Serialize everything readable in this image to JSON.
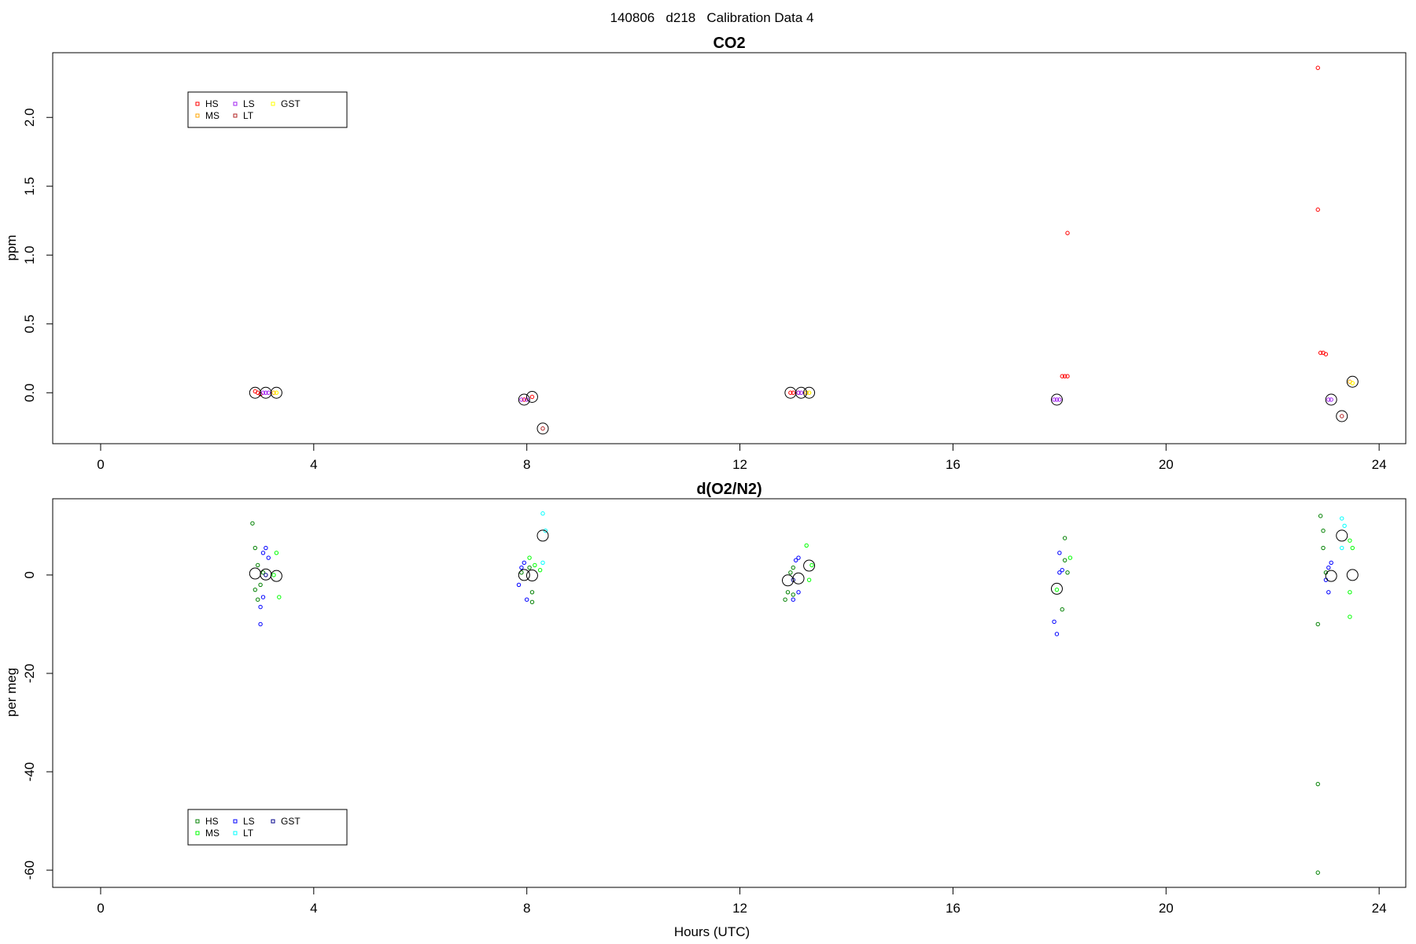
{
  "page_title": "140806   d218   Calibration Data 4",
  "chart_data": [
    {
      "type": "scatter",
      "title": "CO2",
      "xlabel": "",
      "ylabel": "ppm",
      "xlim": [
        -0.9,
        24.5
      ],
      "ylim": [
        -0.37,
        2.47
      ],
      "x_ticks": [
        0,
        4,
        8,
        12,
        16,
        20,
        24
      ],
      "x_tick_labels": [
        "0",
        "4",
        "8",
        "12",
        "16",
        "20",
        "24"
      ],
      "y_ticks": [
        0,
        0.5,
        1,
        1.5,
        2
      ],
      "y_tick_labels": [
        "0.0",
        "0.5",
        "1.0",
        "1.5",
        "2.0"
      ],
      "grid": false,
      "legend": {
        "placement": "top-left",
        "entries": [
          {
            "label": "HS",
            "color": "#ff0000"
          },
          {
            "label": "MS",
            "color": "#ffa500"
          },
          {
            "label": "LS",
            "color": "#a020f0"
          },
          {
            "label": "LT",
            "color": "#b22222"
          },
          {
            "label": "GST",
            "color": "#ffff00"
          }
        ]
      },
      "series": [
        {
          "name": "HS",
          "color": "#ff0000",
          "points": [
            [
              2.9,
              0.01
            ],
            [
              2.95,
              0.0
            ],
            [
              3.0,
              -0.01
            ],
            [
              7.95,
              -0.05
            ],
            [
              8.1,
              -0.03
            ],
            [
              12.95,
              0.0
            ],
            [
              13.0,
              0.0
            ],
            [
              13.1,
              0.0
            ],
            [
              18.05,
              0.12
            ],
            [
              18.1,
              0.12
            ],
            [
              18.15,
              0.12
            ],
            [
              18.15,
              1.16
            ],
            [
              22.85,
              2.36
            ],
            [
              22.85,
              1.33
            ],
            [
              22.9,
              0.29
            ],
            [
              22.95,
              0.29
            ],
            [
              23.0,
              0.28
            ]
          ]
        },
        {
          "name": "MS",
          "color": "#ffa500",
          "points": [
            [
              3.25,
              0.0
            ],
            [
              3.3,
              0.0
            ],
            [
              13.25,
              0.0
            ],
            [
              13.3,
              0.0
            ],
            [
              23.45,
              0.08
            ],
            [
              23.5,
              0.07
            ]
          ]
        },
        {
          "name": "LS",
          "color": "#a020f0",
          "points": [
            [
              3.05,
              0.0
            ],
            [
              3.1,
              0.0
            ],
            [
              3.15,
              0.0
            ],
            [
              7.9,
              -0.05
            ],
            [
              8.0,
              -0.05
            ],
            [
              13.1,
              0.0
            ],
            [
              13.15,
              0.0
            ],
            [
              17.9,
              -0.05
            ],
            [
              17.95,
              -0.05
            ],
            [
              18.0,
              -0.05
            ],
            [
              23.05,
              -0.05
            ],
            [
              23.1,
              -0.05
            ]
          ]
        },
        {
          "name": "LT",
          "color": "#b22222",
          "points": [
            [
              8.3,
              -0.26
            ],
            [
              23.3,
              -0.17
            ]
          ]
        },
        {
          "name": "GST",
          "color": "#ffff00",
          "points": [
            [
              3.3,
              0.0
            ],
            [
              13.3,
              0.0
            ],
            [
              23.5,
              0.07
            ]
          ]
        }
      ],
      "means": [
        [
          2.9,
          0.0
        ],
        [
          3.1,
          0.0
        ],
        [
          3.3,
          0.0
        ],
        [
          7.95,
          -0.05
        ],
        [
          8.1,
          -0.03
        ],
        [
          8.3,
          -0.26
        ],
        [
          12.95,
          0.0
        ],
        [
          13.15,
          0.0
        ],
        [
          13.3,
          0.0
        ],
        [
          17.95,
          -0.05
        ],
        [
          23.1,
          -0.05
        ],
        [
          23.3,
          -0.17
        ],
        [
          23.5,
          0.08
        ]
      ]
    },
    {
      "type": "scatter",
      "title": "d(O2/N2)",
      "xlabel": "Hours (UTC)",
      "ylabel": "per meg",
      "xlim": [
        -0.9,
        24.5
      ],
      "ylim": [
        -63.5,
        15.5
      ],
      "x_ticks": [
        0,
        4,
        8,
        12,
        16,
        20,
        24
      ],
      "x_tick_labels": [
        "0",
        "4",
        "8",
        "12",
        "16",
        "20",
        "24"
      ],
      "y_ticks": [
        -60,
        -40,
        -20,
        0
      ],
      "y_tick_labels": [
        "-60",
        "-40",
        "-20",
        "0"
      ],
      "grid": false,
      "legend": {
        "placement": "bottom-left",
        "entries": [
          {
            "label": "HS",
            "color": "#008000"
          },
          {
            "label": "MS",
            "color": "#00ff00"
          },
          {
            "label": "LS",
            "color": "#0000ff"
          },
          {
            "label": "LT",
            "color": "#00ffff"
          },
          {
            "label": "GST",
            "color": "#00008b"
          }
        ]
      },
      "series": [
        {
          "name": "HS",
          "color": "#008000",
          "points": [
            [
              2.85,
              10.5
            ],
            [
              2.9,
              5.5
            ],
            [
              2.95,
              2.0
            ],
            [
              2.9,
              -3.0
            ],
            [
              3.0,
              -2.0
            ],
            [
              2.95,
              -5.0
            ],
            [
              3.05,
              0.5
            ],
            [
              7.9,
              0.5
            ],
            [
              8.05,
              1.5
            ],
            [
              8.1,
              -3.5
            ],
            [
              8.1,
              -5.5
            ],
            [
              12.9,
              -3.5
            ],
            [
              12.95,
              0.5
            ],
            [
              13.0,
              1.5
            ],
            [
              13.0,
              -4.0
            ],
            [
              12.85,
              -5.0
            ],
            [
              18.05,
              -7.0
            ],
            [
              18.1,
              3.0
            ],
            [
              18.15,
              0.5
            ],
            [
              18.1,
              7.5
            ],
            [
              22.85,
              -10.0
            ],
            [
              22.9,
              12.0
            ],
            [
              22.95,
              9.0
            ],
            [
              22.95,
              5.5
            ],
            [
              23.0,
              0.5
            ],
            [
              22.85,
              -42.5
            ],
            [
              22.85,
              -60.5
            ]
          ]
        },
        {
          "name": "MS",
          "color": "#00ff00",
          "points": [
            [
              3.3,
              4.5
            ],
            [
              3.35,
              -4.5
            ],
            [
              3.25,
              0.0
            ],
            [
              8.05,
              3.5
            ],
            [
              8.15,
              2.0
            ],
            [
              8.25,
              1.0
            ],
            [
              13.25,
              6.0
            ],
            [
              13.3,
              -1.0
            ],
            [
              13.35,
              2.0
            ],
            [
              17.95,
              -3.0
            ],
            [
              18.2,
              3.5
            ],
            [
              23.45,
              7.0
            ],
            [
              23.5,
              5.5
            ],
            [
              23.45,
              -3.5
            ],
            [
              23.45,
              -8.5
            ]
          ]
        },
        {
          "name": "LS",
          "color": "#0000ff",
          "points": [
            [
              3.05,
              4.5
            ],
            [
              3.1,
              5.5
            ],
            [
              3.15,
              3.5
            ],
            [
              3.05,
              -4.5
            ],
            [
              3.0,
              -10.0
            ],
            [
              3.0,
              -6.5
            ],
            [
              7.85,
              -2.0
            ],
            [
              7.9,
              1.5
            ],
            [
              7.95,
              2.5
            ],
            [
              8.0,
              -5.0
            ],
            [
              13.05,
              3.0
            ],
            [
              13.1,
              3.5
            ],
            [
              13.1,
              -3.5
            ],
            [
              13.0,
              -5.0
            ],
            [
              17.9,
              -9.5
            ],
            [
              17.95,
              -12.0
            ],
            [
              18.0,
              0.5
            ],
            [
              18.0,
              4.5
            ],
            [
              18.05,
              1.0
            ],
            [
              23.05,
              1.5
            ],
            [
              23.1,
              2.5
            ],
            [
              23.05,
              -3.5
            ],
            [
              23.0,
              -1.0
            ]
          ]
        },
        {
          "name": "LT",
          "color": "#00ffff",
          "points": [
            [
              8.3,
              12.5
            ],
            [
              8.35,
              9.0
            ],
            [
              8.3,
              2.5
            ],
            [
              23.3,
              11.5
            ],
            [
              23.35,
              10.0
            ],
            [
              23.3,
              5.5
            ]
          ]
        },
        {
          "name": "GST",
          "color": "#00008b",
          "points": [
            [
              3.1,
              0.0
            ],
            [
              13.0,
              -1.0
            ]
          ]
        }
      ],
      "means": [
        [
          2.9,
          0.3
        ],
        [
          3.1,
          0.1
        ],
        [
          3.3,
          -0.2
        ],
        [
          7.95,
          0.0
        ],
        [
          8.1,
          -0.1
        ],
        [
          8.3,
          8.0
        ],
        [
          12.9,
          -1.1
        ],
        [
          13.1,
          -0.7
        ],
        [
          13.3,
          1.9
        ],
        [
          17.95,
          -2.8
        ],
        [
          23.1,
          -0.2
        ],
        [
          23.3,
          8.0
        ],
        [
          23.5,
          0.0
        ]
      ]
    }
  ]
}
